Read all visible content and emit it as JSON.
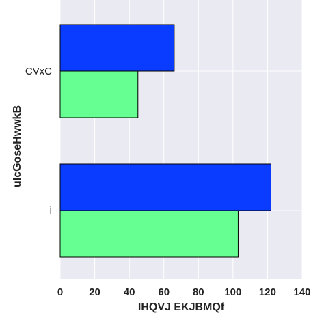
{
  "chart_data": {
    "type": "bar",
    "orientation": "horizontal",
    "categories": [
      "CVxC",
      "i"
    ],
    "series": [
      {
        "values": [
          66,
          122
        ],
        "color": "#0a3cff"
      },
      {
        "values": [
          45,
          103
        ],
        "color": "#66ff91"
      }
    ],
    "xlabel": "IHQVJ  EKJBMQf",
    "ylabel": "uIcGoseHwwkB",
    "xlim": [
      0,
      140
    ],
    "xticks": [
      0,
      20,
      40,
      60,
      80,
      100,
      120,
      140
    ],
    "grid": true,
    "background": "#eaeaf2",
    "gridColor": "#ffffff"
  }
}
